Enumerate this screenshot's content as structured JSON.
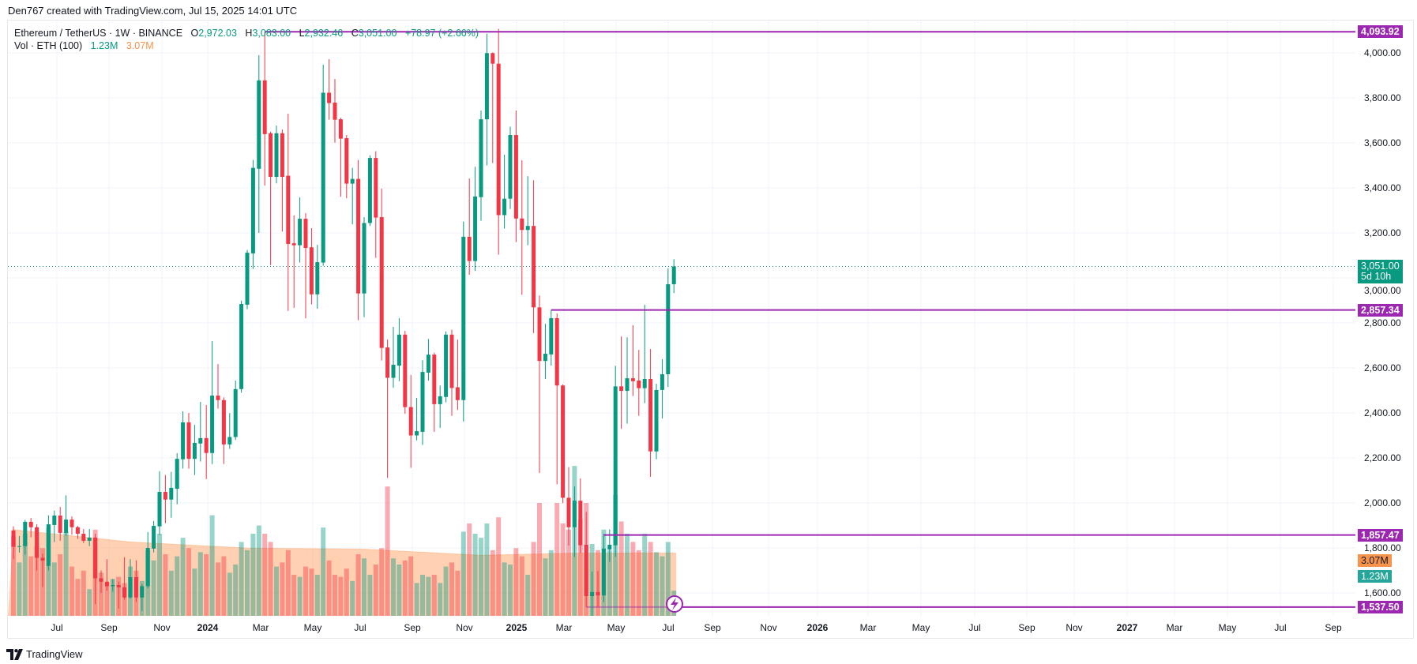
{
  "header": {
    "attribution": "Den767 created with TradingView.com, Jul 15, 2025 14:01 UTC"
  },
  "legend": {
    "symbol": "Ethereum / TetherUS · 1W · BINANCE",
    "open_label": "O",
    "open": "2,972.03",
    "high_label": "H",
    "high": "3,083.00",
    "low_label": "L",
    "low": "2,932.46",
    "close_label": "C",
    "close": "3,051.00",
    "change": "+78.97 (+2.66%)",
    "volume_label": "Vol · ETH (100)",
    "volume_value": "1.23M",
    "volume_ma": "3.07M"
  },
  "footer": {
    "brand": "TradingView"
  },
  "colors": {
    "up": "#089981",
    "down": "#f23645",
    "level": "#9c27b0",
    "volume_ma": "#f7934a",
    "volume_badge": "#26a69a"
  },
  "chart_data": {
    "type": "candlestick",
    "title": "Ethereum / TetherUS · 1W · BINANCE",
    "timeframe": "1W",
    "ylim": [
      1498,
      4135
    ],
    "price_ticks": [
      "4,000.00",
      "3,800.00",
      "3,600.00",
      "3,400.00",
      "3,200.00",
      "3,000.00",
      "2,800.00",
      "2,600.00",
      "2,400.00",
      "2,200.00",
      "2,000.00",
      "1,800.00",
      "1,600.00"
    ],
    "price_tick_values": [
      4000,
      3800,
      3600,
      3400,
      3200,
      3000,
      2800,
      2600,
      2400,
      2200,
      2000,
      1800,
      1600
    ],
    "time_ticks": [
      {
        "label": "Jul",
        "bold": false
      },
      {
        "label": "Sep",
        "bold": false
      },
      {
        "label": "Nov",
        "bold": false
      },
      {
        "label": "2024",
        "bold": true
      },
      {
        "label": "Mar",
        "bold": false
      },
      {
        "label": "May",
        "bold": false
      },
      {
        "label": "Jul",
        "bold": false
      },
      {
        "label": "Sep",
        "bold": false
      },
      {
        "label": "Nov",
        "bold": false
      },
      {
        "label": "2025",
        "bold": true
      },
      {
        "label": "Mar",
        "bold": false
      },
      {
        "label": "May",
        "bold": false
      },
      {
        "label": "Jul",
        "bold": false
      },
      {
        "label": "Sep",
        "bold": false
      },
      {
        "label": "Nov",
        "bold": false
      },
      {
        "label": "2026",
        "bold": true
      },
      {
        "label": "Mar",
        "bold": false
      },
      {
        "label": "May",
        "bold": false
      },
      {
        "label": "Jul",
        "bold": false
      },
      {
        "label": "Sep",
        "bold": false
      },
      {
        "label": "Nov",
        "bold": false
      },
      {
        "label": "2027",
        "bold": true
      },
      {
        "label": "Mar",
        "bold": false
      },
      {
        "label": "May",
        "bold": false
      },
      {
        "label": "Jul",
        "bold": false
      },
      {
        "label": "Sep",
        "bold": false
      }
    ],
    "ohlc": [
      [
        1878,
        1896,
        1750,
        1805
      ],
      [
        1805,
        1853,
        1779,
        1808
      ],
      [
        1808,
        1925,
        1770,
        1916
      ],
      [
        1916,
        1933,
        1847,
        1892
      ],
      [
        1892,
        1905,
        1700,
        1756
      ],
      [
        1756,
        1775,
        1626,
        1744
      ],
      [
        1720,
        1945,
        1700,
        1905
      ],
      [
        1902,
        1966,
        1826,
        1944
      ],
      [
        1944,
        1982,
        1832,
        1867
      ],
      [
        1867,
        2034,
        1855,
        1926
      ],
      [
        1926,
        1940,
        1859,
        1892
      ],
      [
        1892,
        1898,
        1840,
        1863
      ],
      [
        1863,
        1884,
        1822,
        1832
      ],
      [
        1832,
        1884,
        1808,
        1846
      ],
      [
        1846,
        1863,
        1550,
        1665
      ],
      [
        1665,
        1700,
        1600,
        1650
      ],
      [
        1650,
        1750,
        1610,
        1630
      ],
      [
        1630,
        1660,
        1605,
        1635
      ],
      [
        1635,
        1650,
        1530,
        1625
      ],
      [
        1625,
        1759,
        1570,
        1580
      ],
      [
        1580,
        1750,
        1575,
        1670
      ],
      [
        1670,
        1745,
        1560,
        1580
      ],
      [
        1580,
        1640,
        1520,
        1630
      ],
      [
        1630,
        1870,
        1620,
        1800
      ],
      [
        1797,
        1920,
        1780,
        1898
      ],
      [
        1896,
        2141,
        1857,
        2049
      ],
      [
        2049,
        2124,
        1910,
        2015
      ],
      [
        2015,
        2138,
        1934,
        2067
      ],
      [
        2063,
        2221,
        1994,
        2196
      ],
      [
        2194,
        2407,
        2153,
        2358
      ],
      [
        2358,
        2400,
        2152,
        2196
      ],
      [
        2196,
        2347,
        2124,
        2267
      ],
      [
        2264,
        2449,
        2184,
        2288
      ],
      [
        2288,
        2435,
        2106,
        2222
      ],
      [
        2222,
        2719,
        2173,
        2477
      ],
      [
        2477,
        2617,
        2419,
        2457
      ],
      [
        2457,
        2469,
        2173,
        2260
      ],
      [
        2260,
        2399,
        2240,
        2293
      ],
      [
        2293,
        2544,
        2280,
        2506
      ],
      [
        2506,
        2899,
        2490,
        2884
      ],
      [
        2881,
        3124,
        2861,
        3112
      ],
      [
        3109,
        3524,
        3040,
        3489
      ],
      [
        3485,
        3990,
        3200,
        3878
      ],
      [
        3878,
        4093.92,
        3410,
        3639
      ],
      [
        3643,
        3650,
        3057,
        3449
      ],
      [
        3449,
        3677,
        3420,
        3643
      ],
      [
        3643,
        3660,
        3206,
        3449
      ],
      [
        3454,
        3730,
        2853,
        3151
      ],
      [
        3154,
        3278,
        2867,
        3145
      ],
      [
        3145,
        3358,
        3068,
        3263
      ],
      [
        3263,
        3288,
        2820,
        3133
      ],
      [
        3136,
        3221,
        2882,
        2927
      ],
      [
        2927,
        3147,
        2863,
        3070
      ],
      [
        3068,
        3948,
        3054,
        3823
      ],
      [
        3823,
        3972,
        3703,
        3777
      ],
      [
        3779,
        3884,
        3601,
        3703
      ],
      [
        3705,
        3712,
        3361,
        3619
      ],
      [
        3621,
        3635,
        3354,
        3419
      ],
      [
        3419,
        3489,
        3238,
        3440
      ],
      [
        3440,
        3524,
        2812,
        2931
      ],
      [
        2931,
        3270,
        2826,
        3244
      ],
      [
        3244,
        3545,
        3231,
        3533
      ],
      [
        3533,
        3563,
        3089,
        3268
      ],
      [
        3270,
        3397,
        2633,
        2689
      ],
      [
        2691,
        2726,
        2111,
        2556
      ],
      [
        2556,
        2783,
        2512,
        2614
      ],
      [
        2610,
        2821,
        2541,
        2748
      ],
      [
        2748,
        2765,
        2396,
        2426
      ],
      [
        2426,
        2569,
        2156,
        2300
      ],
      [
        2300,
        2467,
        2278,
        2319
      ],
      [
        2316,
        2634,
        2258,
        2582
      ],
      [
        2579,
        2729,
        2544,
        2659
      ],
      [
        2659,
        2668,
        2316,
        2439
      ],
      [
        2439,
        2522,
        2333,
        2474
      ],
      [
        2471,
        2762,
        2447,
        2748
      ],
      [
        2748,
        2770,
        2387,
        2511
      ],
      [
        2514,
        2726,
        2413,
        2457
      ],
      [
        2457,
        3250,
        2362,
        3183
      ],
      [
        3183,
        3442,
        3014,
        3075
      ],
      [
        3075,
        3494,
        3031,
        3362
      ],
      [
        3359,
        3744,
        3254,
        3705
      ],
      [
        3705,
        4085,
        3500,
        3999
      ],
      [
        3999,
        4002,
        3510,
        3952
      ],
      [
        3952,
        4107,
        3103,
        3279
      ],
      [
        3279,
        3548,
        3219,
        3352
      ],
      [
        3352,
        3672,
        3306,
        3635
      ],
      [
        3635,
        3744,
        3159,
        3264
      ],
      [
        3264,
        3523,
        2925,
        3213
      ],
      [
        3213,
        3452,
        3145,
        3231
      ],
      [
        3231,
        3434,
        2755,
        2869
      ],
      [
        2869,
        2922,
        2133,
        2631
      ],
      [
        2631,
        2796,
        2551,
        2663
      ],
      [
        2660,
        2857.34,
        2610,
        2821
      ],
      [
        2821,
        2842,
        2083,
        2522
      ],
      [
        2522,
        2527,
        1999,
        2023
      ],
      [
        2023,
        2159,
        1810,
        1892
      ],
      [
        1892,
        2073,
        1760,
        2010
      ],
      [
        2010,
        2109,
        1777,
        1812
      ],
      [
        1814,
        1960,
        1537.5,
        1586
      ],
      [
        1586,
        1695,
        1385,
        1604
      ],
      [
        1604,
        1697,
        1540,
        1589
      ],
      [
        1589,
        1863,
        1560,
        1797
      ],
      [
        1793,
        1882,
        1738,
        1814
      ],
      [
        1812,
        2609,
        1760,
        2518
      ],
      [
        2518,
        2740,
        2329,
        2498
      ],
      [
        2498,
        2736,
        2352,
        2554
      ],
      [
        2554,
        2790,
        2475,
        2541
      ],
      [
        2544,
        2680,
        2387,
        2510
      ],
      [
        2510,
        2881,
        2443,
        2551
      ],
      [
        2551,
        2684,
        2116,
        2229
      ],
      [
        2229,
        2530,
        2194,
        2502
      ],
      [
        2502,
        2639,
        2375,
        2572
      ],
      [
        2572,
        3042,
        2516,
        2972
      ],
      [
        2972.03,
        3083,
        2932.46,
        3051
      ]
    ],
    "volume_millions": [
      3.9,
      2.6,
      4.0,
      2.9,
      3.4,
      3.3,
      4.3,
      2.6,
      3.0,
      4.1,
      2.4,
      1.8,
      2.2,
      1.3,
      4.2,
      2.1,
      1.6,
      1.8,
      1.9,
      1.6,
      2.4,
      2.2,
      1.7,
      3.2,
      2.7,
      4.0,
      3.0,
      2.2,
      2.9,
      3.8,
      3.3,
      2.3,
      3.1,
      3.0,
      4.9,
      2.6,
      2.9,
      2.1,
      2.5,
      3.6,
      3.2,
      4.0,
      4.4,
      4.0,
      3.6,
      2.4,
      2.6,
      3.2,
      2.0,
      1.9,
      2.4,
      2.3,
      2.0,
      4.3,
      2.7,
      2.0,
      1.9,
      2.3,
      1.7,
      3.0,
      2.8,
      2.0,
      2.5,
      3.3,
      6.3,
      2.8,
      2.5,
      2.7,
      2.9,
      1.6,
      2.0,
      1.9,
      2.0,
      1.6,
      2.4,
      2.6,
      2.2,
      4.1,
      4.5,
      4.0,
      3.8,
      4.5,
      3.2,
      4.8,
      2.6,
      2.5,
      3.3,
      2.9,
      2.0,
      3.6,
      5.5,
      2.8,
      3.2,
      5.5,
      4.5,
      4.2,
      7.3,
      4.7,
      5.5,
      3.5,
      3.2,
      4.2,
      3.2,
      5.9,
      4.6,
      4.0,
      3.6,
      3.2,
      4.0,
      3.6,
      3.1,
      2.9,
      3.6,
      1.23
    ],
    "volume_ma_keyframes": [
      [
        0,
        4.2
      ],
      [
        20,
        3.6
      ],
      [
        40,
        3.3
      ],
      [
        60,
        3.25
      ],
      [
        80,
        2.95
      ],
      [
        95,
        3.05
      ],
      [
        113,
        3.07
      ]
    ],
    "last_price": {
      "value": 3051.0,
      "label": "3,051.00",
      "countdown": "5d 10h"
    },
    "levels": [
      {
        "price": 4093.92,
        "label": "4,093.92",
        "from_bar": 43
      },
      {
        "price": 2857.34,
        "label": "2,857.34",
        "from_bar": 92
      },
      {
        "price": 1857.47,
        "label": "1,857.47",
        "from_bar": 101
      },
      {
        "price": 1537.5,
        "label": "1,537.50",
        "from_bar": 98
      }
    ],
    "volume_badges": {
      "ma": "3.07M",
      "ma_value": 3.07,
      "last": "1.23M",
      "last_value": 1.23
    }
  }
}
